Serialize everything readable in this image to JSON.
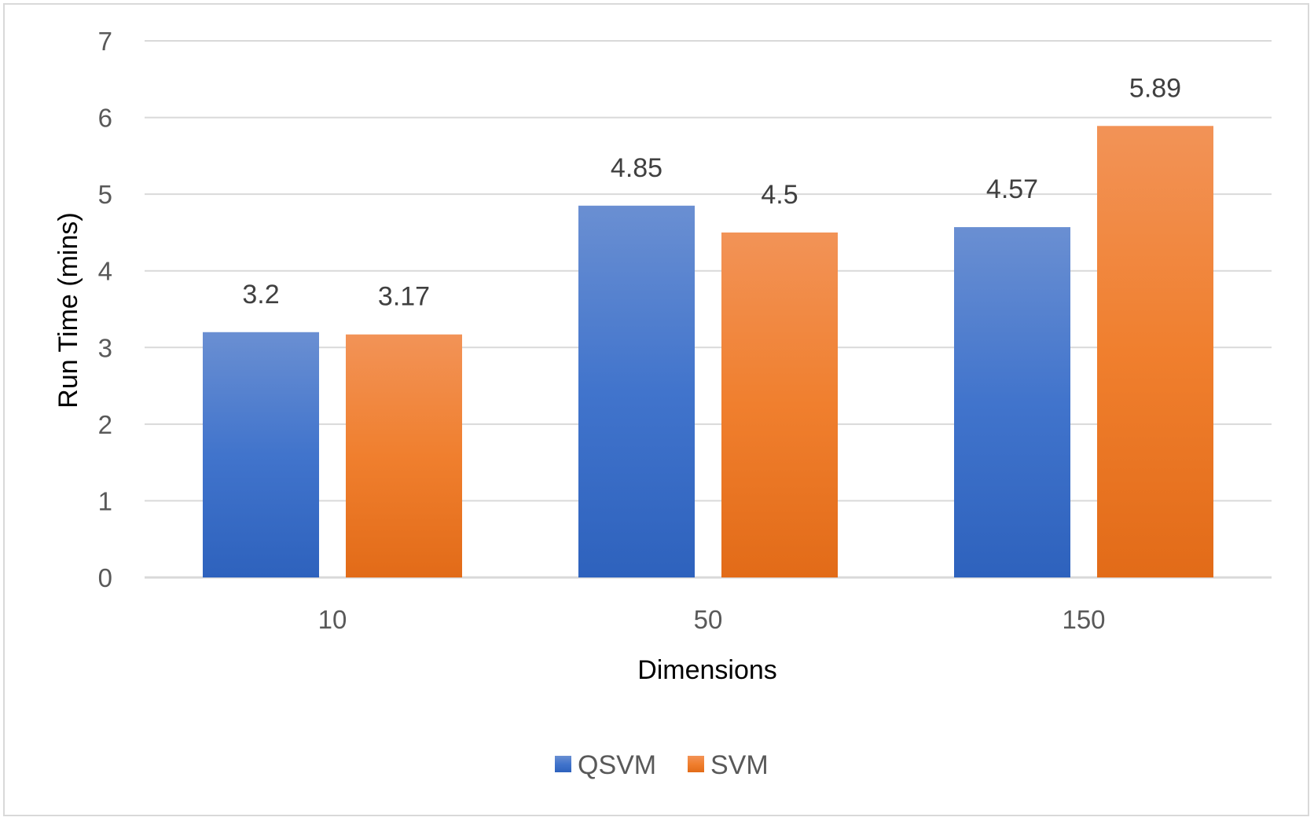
{
  "chart_data": {
    "type": "bar",
    "categories": [
      "10",
      "50",
      "150"
    ],
    "series": [
      {
        "name": "QSVM",
        "values": [
          3.2,
          4.85,
          4.57
        ],
        "color": "#4472c4"
      },
      {
        "name": "SVM",
        "values": [
          3.17,
          4.5,
          5.89
        ],
        "color": "#ed7d31"
      }
    ],
    "xlabel": "Dimensions",
    "ylabel": "Run Time (mins)",
    "ylim": [
      0,
      7
    ],
    "yticks": [
      0,
      1,
      2,
      3,
      4,
      5,
      6,
      7
    ],
    "grid": true,
    "legend": "bottom"
  }
}
